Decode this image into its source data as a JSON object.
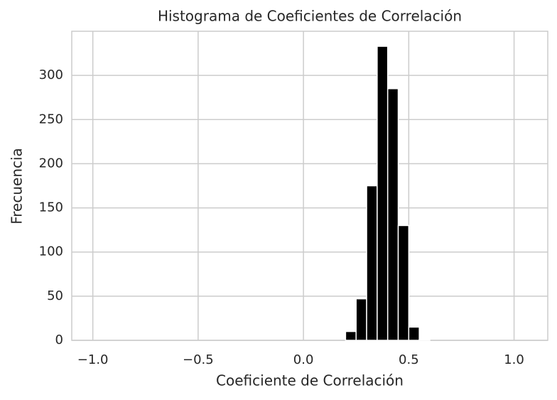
{
  "chart_data": {
    "type": "histogram",
    "title": "Histograma de Coeficientes de Correlación",
    "xlabel": "Coeficiente de Correlación",
    "ylabel": "Frecuencia",
    "bins": [
      0.2,
      0.25,
      0.3,
      0.35,
      0.4,
      0.45,
      0.5,
      0.55,
      0.6
    ],
    "values": [
      10,
      47,
      175,
      333,
      285,
      130,
      15,
      1
    ],
    "color": "#000000",
    "xlim": [
      -1.1,
      1.16
    ],
    "xticks": [
      {
        "value": -1,
        "label": "−1.0"
      },
      {
        "value": -0.5,
        "label": "−0.5"
      },
      {
        "value": 0,
        "label": "0.0"
      },
      0.5,
      {
        "value": 1,
        "label": "1.0"
      }
    ],
    "ylim": [
      0,
      350
    ],
    "yticks": [
      0,
      50,
      100,
      150,
      200,
      250,
      300
    ],
    "grid": true
  }
}
